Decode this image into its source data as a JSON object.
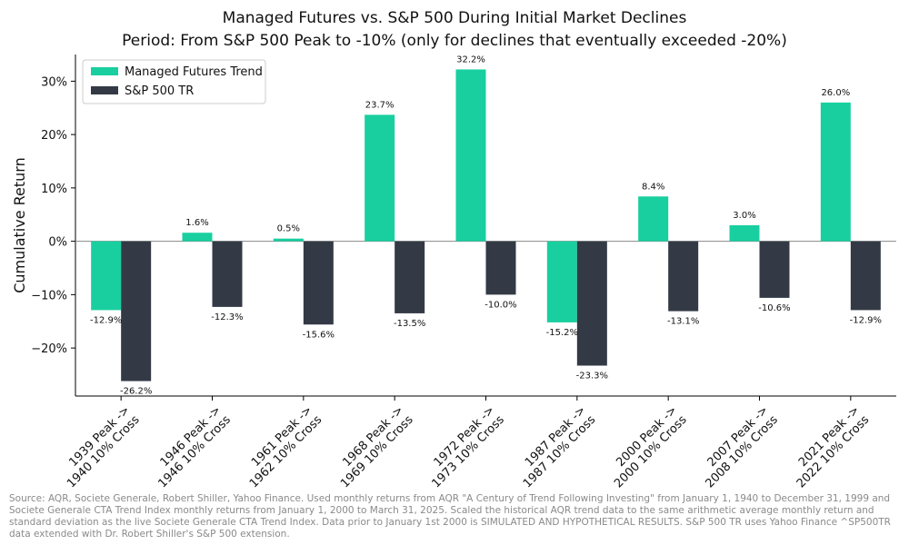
{
  "title": "Managed Futures vs. S&P 500 During Initial Market Declines",
  "subtitle": "Period: From S&P 500 Peak to -10% (only for declines that eventually exceeded -20%)",
  "source_note": "Source: AQR, Societe Generale, Robert Shiller, Yahoo Finance. Used monthly returns from AQR \"A Century of Trend Following Investing\" from January 1, 1940 to December 31, 1999 and Societe Generale CTA Trend Index monthly returns from January 1, 2000 to March 31, 2025. Scaled the historical AQR trend data to the same arithmetic average monthly return and standard deviation as the live Societe Generale CTA Trend Index. Data prior to January 1st 2000 is SIMULATED AND HYPOTHETICAL RESULTS. S&P 500 TR uses Yahoo Finance ^SP500TR data extended with Dr. Robert Shiller's S&P 500 extension.",
  "colors": {
    "managed_futures": "#19cfa0",
    "sp500": "#333a45",
    "zero_line": "#888888"
  },
  "chart_data": {
    "type": "bar",
    "ylabel": "Cumulative Return",
    "xlabel": "",
    "ylim": [
      -0.29,
      0.35
    ],
    "yticks": [
      -0.2,
      -0.1,
      0.0,
      0.1,
      0.2,
      0.3
    ],
    "ytick_labels": [
      "−20%",
      "−10%",
      "0%",
      "10%",
      "20%",
      "30%"
    ],
    "legend_position": "top-left",
    "grid": false,
    "categories": [
      [
        "1939 Peak ->",
        "1940 10% Cross"
      ],
      [
        "1946 Peak ->",
        "1946 10% Cross"
      ],
      [
        "1961 Peak ->",
        "1962 10% Cross"
      ],
      [
        "1968 Peak ->",
        "1969 10% Cross"
      ],
      [
        "1972 Peak ->",
        "1973 10% Cross"
      ],
      [
        "1987 Peak ->",
        "1987 10% Cross"
      ],
      [
        "2000 Peak ->",
        "2000 10% Cross"
      ],
      [
        "2007 Peak ->",
        "2008 10% Cross"
      ],
      [
        "2021 Peak ->",
        "2022 10% Cross"
      ]
    ],
    "series": [
      {
        "name": "Managed Futures Trend",
        "values": [
          -0.129,
          0.016,
          0.005,
          0.237,
          0.322,
          -0.152,
          0.084,
          0.03,
          0.26
        ],
        "labels": [
          "-12.9%",
          "1.6%",
          "0.5%",
          "23.7%",
          "32.2%",
          "-15.2%",
          "8.4%",
          "3.0%",
          "26.0%"
        ]
      },
      {
        "name": "S&P 500 TR",
        "values": [
          -0.262,
          -0.123,
          -0.156,
          -0.135,
          -0.1,
          -0.233,
          -0.131,
          -0.106,
          -0.129
        ],
        "labels": [
          "-26.2%",
          "-12.3%",
          "-15.6%",
          "-13.5%",
          "-10.0%",
          "-23.3%",
          "-13.1%",
          "-10.6%",
          "-12.9%"
        ]
      }
    ]
  }
}
